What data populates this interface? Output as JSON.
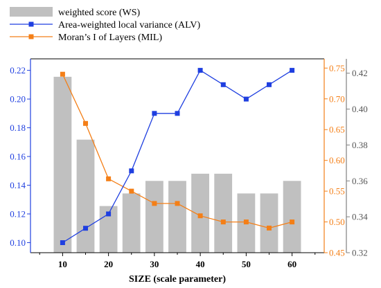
{
  "chart_data": {
    "type": "bar+line",
    "xlabel": "SIZE (scale parameter)",
    "x": [
      10,
      15,
      20,
      25,
      30,
      35,
      40,
      45,
      50,
      55,
      60
    ],
    "x_ticks": [
      "10",
      "20",
      "30",
      "40",
      "50",
      "60"
    ],
    "x_range": [
      3,
      67
    ],
    "series": [
      {
        "name": "weighted score (WS)",
        "kind": "bar",
        "axis": "right-outer",
        "color": "#c0c0c0",
        "values": [
          0.418,
          0.383,
          0.346,
          0.353,
          0.36,
          0.36,
          0.364,
          0.364,
          0.353,
          0.353,
          0.36
        ]
      },
      {
        "name": "Area-weighted local variance (ALV)",
        "kind": "line",
        "marker": "square",
        "axis": "left",
        "color": "#1f3fe0",
        "values": [
          0.1,
          0.11,
          0.12,
          0.15,
          0.19,
          0.19,
          0.22,
          0.21,
          0.2,
          0.21,
          0.22
        ]
      },
      {
        "name": "Moran’s I of Layers (MIL)",
        "kind": "line",
        "marker": "square",
        "axis": "right-inner",
        "color": "#f47f17",
        "values": [
          0.74,
          0.66,
          0.57,
          0.55,
          0.53,
          0.53,
          0.51,
          0.5,
          0.5,
          0.49,
          0.5
        ]
      }
    ],
    "axes": {
      "left": {
        "range": [
          0.093,
          0.228
        ],
        "ticks": [
          0.1,
          0.12,
          0.14,
          0.16,
          0.18,
          0.2,
          0.22
        ],
        "tick_labels": [
          "0.10",
          "0.12",
          "0.14",
          "0.16",
          "0.18",
          "0.20",
          "0.22"
        ],
        "color": "#1f3fe0"
      },
      "right_inner": {
        "range": [
          0.45,
          0.765
        ],
        "ticks": [
          0.45,
          0.5,
          0.55,
          0.6,
          0.65,
          0.7,
          0.75
        ],
        "tick_labels": [
          "0.45",
          "0.50",
          "0.55",
          "0.60",
          "0.65",
          "0.70",
          "0.75"
        ],
        "color": "#f47f17"
      },
      "right_outer": {
        "range": [
          0.32,
          0.428
        ],
        "ticks": [
          0.32,
          0.34,
          0.36,
          0.38,
          0.4,
          0.42
        ],
        "tick_labels": [
          "0.32",
          "0.34",
          "0.36",
          "0.38",
          "0.40",
          "0.42"
        ],
        "color": "#808080"
      }
    },
    "legend_position": "top-left",
    "grid": false
  }
}
